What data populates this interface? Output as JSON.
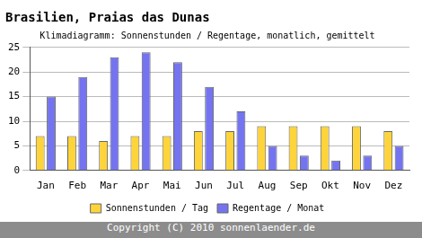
{
  "chart_data": {
    "type": "bar",
    "title": "Brasilien, Praias das Dunas",
    "subtitle": "Klimadiagramm: Sonnenstunden / Regentage, monatlich, gemittelt",
    "footer": "Copyright (C) 2010 sonnenlaender.de",
    "categories": [
      "Jan",
      "Feb",
      "Mar",
      "Apr",
      "Mai",
      "Jun",
      "Jul",
      "Aug",
      "Sep",
      "Okt",
      "Nov",
      "Dez"
    ],
    "series": [
      {
        "name": "Sonnenstunden / Tag",
        "color": "#ffd43a",
        "values": [
          7,
          7,
          6,
          7,
          7,
          8,
          8,
          9,
          9,
          9,
          9,
          8
        ]
      },
      {
        "name": "Regentage / Monat",
        "color": "#7474f0",
        "values": [
          15,
          19,
          23,
          24,
          22,
          17,
          12,
          5,
          3,
          2,
          3,
          5
        ]
      }
    ],
    "ylim": [
      0,
      25
    ],
    "yticks": [
      0,
      5,
      10,
      15,
      20,
      25
    ],
    "grid": true,
    "legend": "bottom"
  }
}
